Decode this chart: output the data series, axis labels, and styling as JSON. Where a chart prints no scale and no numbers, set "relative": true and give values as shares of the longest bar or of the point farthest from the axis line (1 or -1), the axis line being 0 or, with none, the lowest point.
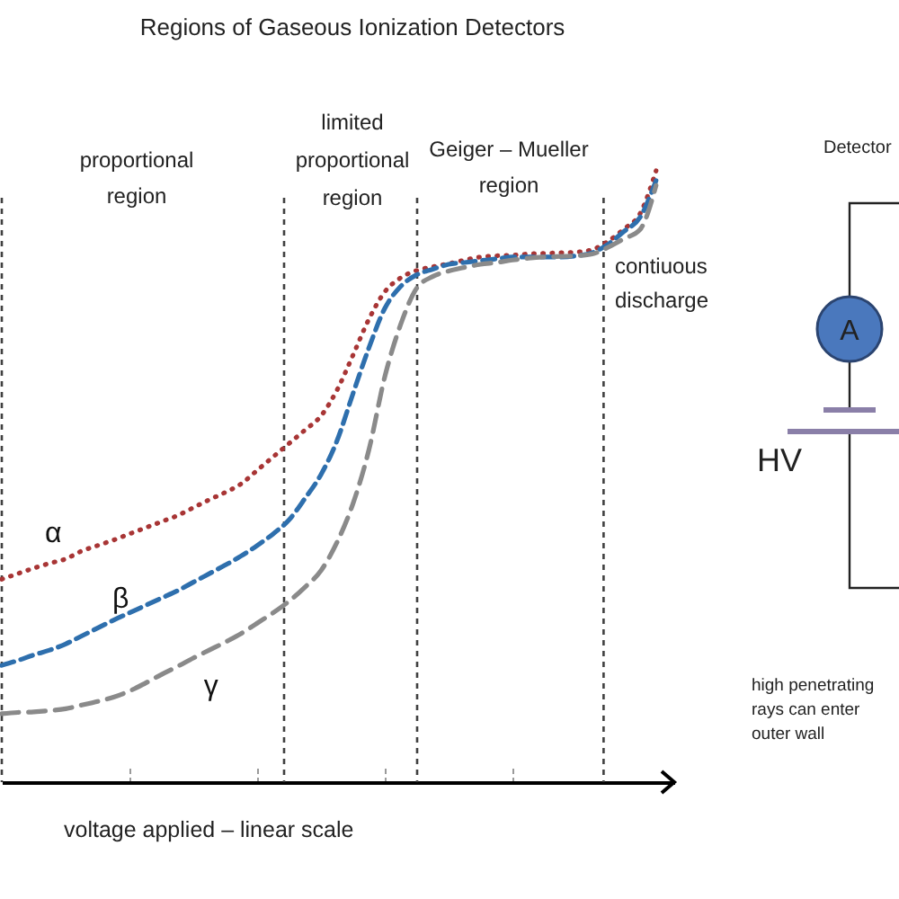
{
  "chart_data": {
    "type": "line",
    "title": "Regions of Gaseous Ionization Detectors",
    "xlabel": "voltage applied – linear scale",
    "relative": true,
    "categories": [
      null,
      null,
      null,
      null,
      null,
      null,
      null,
      null,
      null,
      null,
      null,
      null,
      null,
      null,
      null,
      null,
      null,
      null,
      null,
      null,
      null,
      null,
      null,
      null,
      null,
      null,
      null,
      null,
      null,
      null,
      null,
      null,
      null,
      null,
      null,
      null,
      null,
      null,
      null,
      null,
      null,
      null
    ],
    "legend": false,
    "grid": false,
    "marker": "none",
    "series": [
      {
        "name": "α",
        "color": "#a83535",
        "line_style": "dotted",
        "values": [
          0.332,
          0.341,
          0.35,
          0.358,
          0.365,
          0.378,
          0.387,
          0.396,
          0.406,
          0.416,
          0.426,
          0.436,
          0.449,
          0.462,
          0.474,
          0.488,
          0.51,
          0.532,
          0.554,
          0.576,
          0.599,
          0.641,
          0.698,
          0.757,
          0.802,
          0.825,
          0.837,
          0.843,
          0.848,
          0.854,
          0.859,
          0.861,
          0.862,
          0.864,
          0.865,
          0.866,
          0.867,
          0.871,
          0.885,
          0.905,
          0.93,
          1.0
        ]
      },
      {
        "name": "β",
        "color": "#2e6fad",
        "line_style": "dashed",
        "values": [
          0.191,
          0.199,
          0.208,
          0.216,
          0.226,
          0.239,
          0.252,
          0.265,
          0.277,
          0.289,
          0.301,
          0.313,
          0.327,
          0.341,
          0.355,
          0.37,
          0.387,
          0.406,
          0.429,
          0.464,
          0.503,
          0.558,
          0.635,
          0.71,
          0.775,
          0.811,
          0.83,
          0.839,
          0.847,
          0.85,
          0.853,
          0.856,
          0.859,
          0.859,
          0.859,
          0.859,
          0.861,
          0.866,
          0.88,
          0.901,
          0.924,
          0.984
        ]
      },
      {
        "name": "γ",
        "color": "#8a8a8a",
        "line_style": "dashed",
        "values": [
          0.112,
          0.114,
          0.115,
          0.117,
          0.12,
          0.126,
          0.132,
          0.139,
          0.149,
          0.162,
          0.176,
          0.189,
          0.203,
          0.216,
          0.229,
          0.243,
          0.26,
          0.277,
          0.296,
          0.319,
          0.346,
          0.392,
          0.455,
          0.543,
          0.663,
          0.749,
          0.808,
          0.827,
          0.836,
          0.842,
          0.847,
          0.85,
          0.854,
          0.857,
          0.859,
          0.86,
          0.861,
          0.864,
          0.875,
          0.889,
          0.904,
          0.976
        ]
      }
    ],
    "ref_lines": [
      {
        "axis": "x",
        "color": "#404040",
        "line_style": "dashed"
      },
      {
        "axis": "x",
        "color": "#404040",
        "line_style": "dashed"
      },
      {
        "axis": "x",
        "color": "#404040",
        "line_style": "dashed"
      },
      {
        "axis": "x",
        "color": "#404040",
        "line_style": "dashed"
      }
    ],
    "annotations": [
      "proportional\nregion",
      "limited\nproportional\nregion",
      "Geiger – Mueller\nregion",
      "contiuous\ndischarge",
      "Detector",
      "A",
      "HV",
      "high penetrating\nrays can enter\nouter wall"
    ]
  }
}
